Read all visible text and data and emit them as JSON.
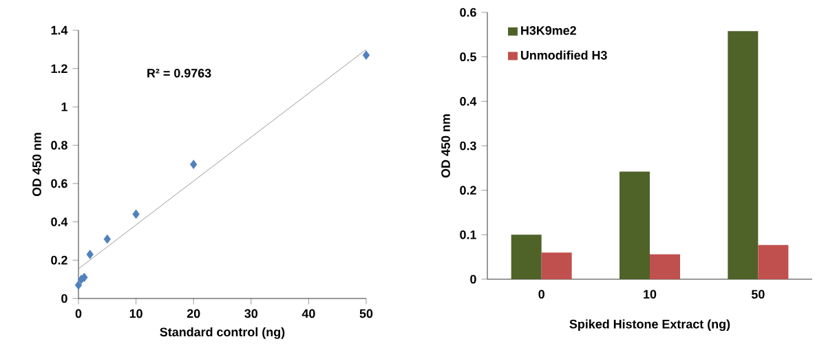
{
  "chart_data": [
    {
      "type": "scatter",
      "xlabel": "Standard control (ng)",
      "ylabel": "OD 450 nm",
      "xlim": [
        0,
        50
      ],
      "ylim": [
        0,
        1.4
      ],
      "xticks": [
        0,
        10,
        20,
        30,
        40,
        50
      ],
      "yticks": [
        0,
        0.2,
        0.4,
        0.6,
        0.8,
        1,
        1.2,
        1.4
      ],
      "series": [
        {
          "type": "scatter",
          "marker": "diamond",
          "color": "#4f81bd",
          "x": [
            0,
            0.5,
            1,
            2,
            5,
            10,
            20,
            50
          ],
          "values": [
            0.07,
            0.1,
            0.11,
            0.23,
            0.31,
            0.44,
            0.7,
            1.27
          ]
        },
        {
          "type": "line",
          "marker": "none",
          "color": "#808080",
          "x": [
            0,
            50
          ],
          "values": [
            0.155,
            1.3
          ]
        }
      ],
      "annotations": [
        "R² = 0.9763"
      ]
    },
    {
      "type": "bar",
      "xlabel": "Spiked Histone Extract (ng)",
      "ylabel": "OD 450 nm",
      "categories": [
        "0",
        "10",
        "50"
      ],
      "ylim": [
        0,
        0.6
      ],
      "yticks": [
        0,
        0.1,
        0.2,
        0.3,
        0.4,
        0.5,
        0.6
      ],
      "legend": "top left",
      "series": [
        {
          "name": "H3K9me2",
          "color": "#4f6228",
          "values": [
            0.1,
            0.242,
            0.558
          ]
        },
        {
          "name": "Unmodified H3",
          "color": "#c0504d",
          "values": [
            0.06,
            0.056,
            0.077
          ]
        }
      ]
    }
  ]
}
